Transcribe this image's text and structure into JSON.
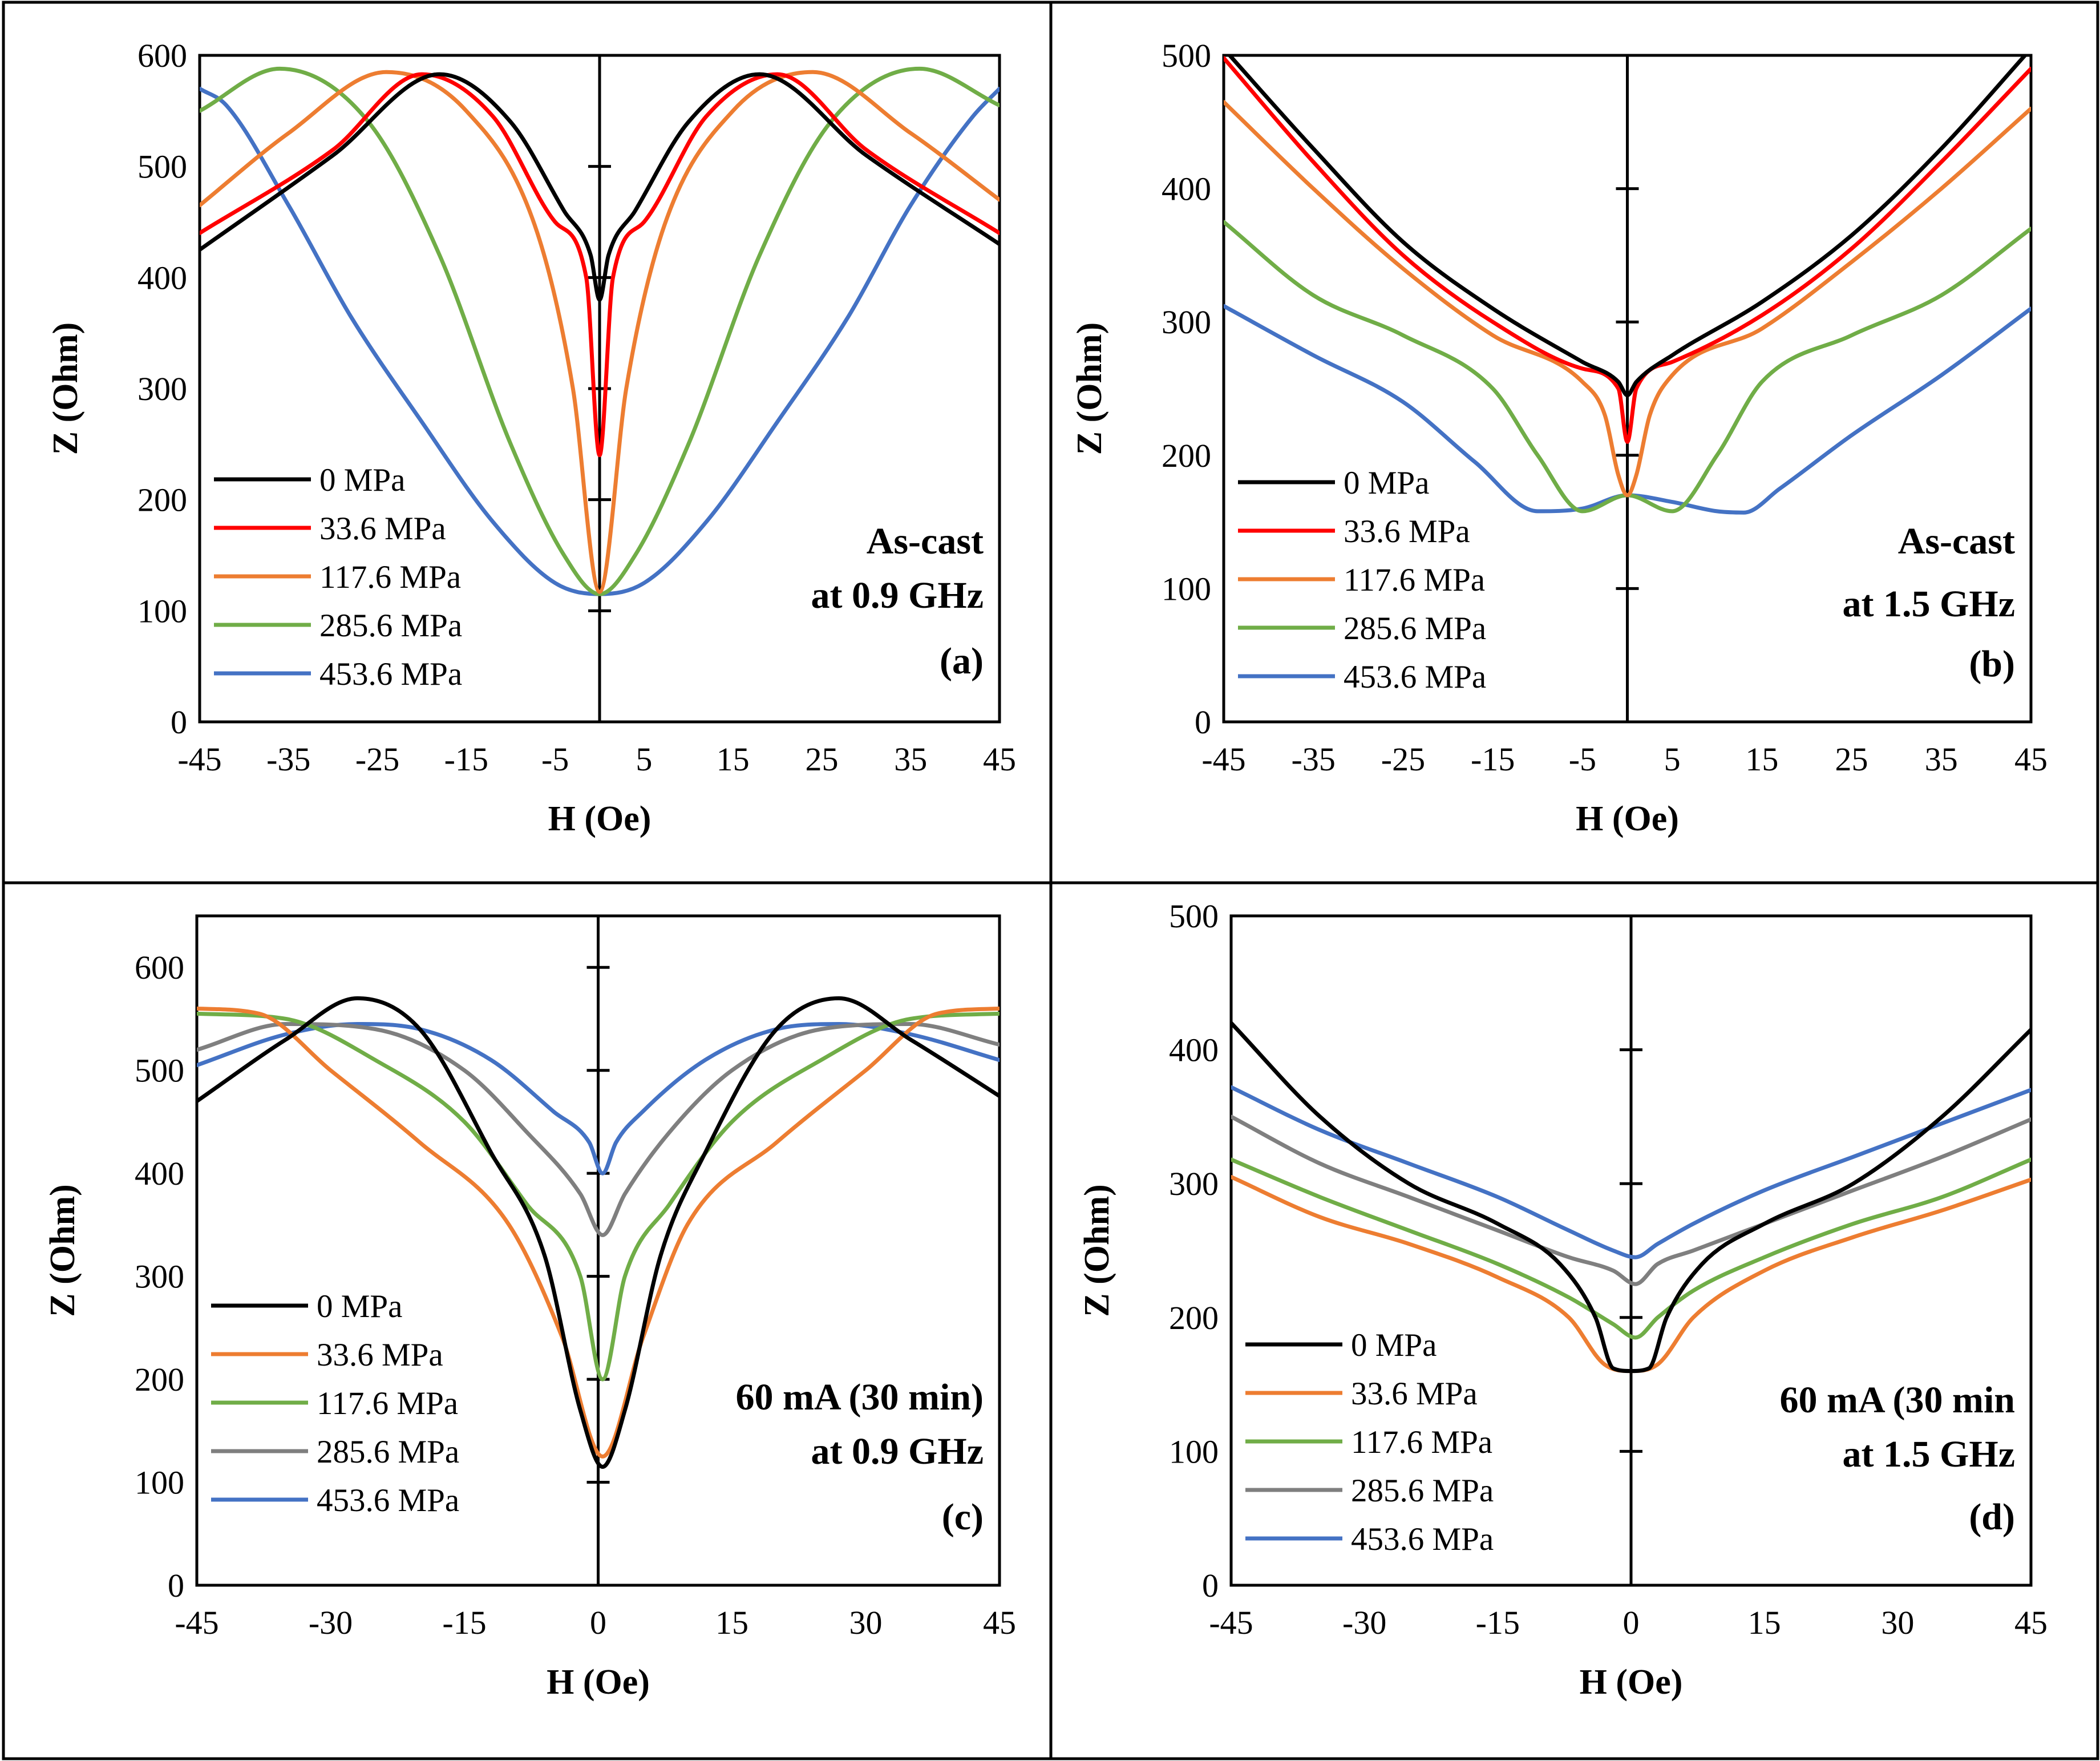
{
  "colors": {
    "black": "#000000",
    "red": "#ff0000",
    "orange": "#ed7d31",
    "green": "#70ad47",
    "gray": "#7f7f7f",
    "blue": "#4472c4"
  },
  "chart_data": [
    {
      "panel": "a",
      "type": "line",
      "xlabel": "H (Oe)",
      "ylabel": "Z (Ohm)",
      "xlim": [
        -45,
        45
      ],
      "ylim": [
        0,
        600
      ],
      "xticks": [
        "-45",
        "-35",
        "-25",
        "-15",
        "-5",
        "5",
        "15",
        "25",
        "35",
        "45"
      ],
      "yticks": [
        "0",
        "100",
        "200",
        "300",
        "400",
        "500",
        "600"
      ],
      "annotation": [
        "As-cast",
        "at 0.9 GHz",
        "(a)"
      ],
      "legend_position": "bottom-left",
      "series": [
        {
          "name": "0 MPa",
          "color": "black",
          "x": [
            -45,
            -30,
            -18,
            -10,
            -4,
            -1,
            0,
            1,
            4,
            10,
            18,
            30,
            45
          ],
          "y": [
            425,
            510,
            583,
            540,
            460,
            420,
            380,
            420,
            460,
            540,
            583,
            510,
            430
          ]
        },
        {
          "name": "33.6 MPa",
          "color": "red",
          "x": [
            -45,
            -30,
            -20,
            -12,
            -5,
            -1.5,
            0,
            1.5,
            5,
            12,
            20,
            30,
            45
          ],
          "y": [
            440,
            515,
            583,
            545,
            450,
            400,
            240,
            400,
            450,
            545,
            583,
            515,
            440
          ]
        },
        {
          "name": "117.6 MPa",
          "color": "orange",
          "x": [
            -45,
            -35,
            -24,
            -15,
            -7,
            -3,
            0,
            3,
            7,
            15,
            24,
            35,
            45
          ],
          "y": [
            465,
            530,
            585,
            550,
            440,
            300,
            117,
            300,
            440,
            550,
            585,
            530,
            470
          ]
        },
        {
          "name": "285.6 MPa",
          "color": "green",
          "x": [
            -45,
            -36,
            -26,
            -18,
            -10,
            -4,
            0,
            4,
            10,
            18,
            26,
            36,
            45
          ],
          "y": [
            550,
            588,
            540,
            420,
            250,
            150,
            115,
            150,
            250,
            420,
            540,
            588,
            555
          ]
        },
        {
          "name": "453.6 MPa",
          "color": "blue",
          "x": [
            -45,
            -42,
            -35,
            -28,
            -20,
            -12,
            -5,
            0,
            5,
            12,
            20,
            28,
            35,
            42,
            45
          ],
          "y": [
            570,
            555,
            465,
            365,
            270,
            180,
            125,
            115,
            125,
            180,
            270,
            365,
            465,
            545,
            570
          ]
        }
      ]
    },
    {
      "panel": "b",
      "type": "line",
      "xlabel": "H (Oe)",
      "ylabel": "Z (Ohm)",
      "xlim": [
        -45,
        45
      ],
      "ylim": [
        0,
        500
      ],
      "xticks": [
        "-45",
        "-35",
        "-25",
        "-15",
        "-5",
        "5",
        "15",
        "25",
        "35",
        "45"
      ],
      "yticks": [
        "0",
        "100",
        "200",
        "300",
        "400",
        "500"
      ],
      "annotation": [
        "As-cast",
        "at 1.5 GHz",
        "(b)"
      ],
      "legend_position": "bottom-left",
      "series": [
        {
          "name": "0 MPa",
          "color": "black",
          "x": [
            -45,
            -35,
            -25,
            -15,
            -5,
            -1,
            0,
            1,
            5,
            15,
            25,
            35,
            45
          ],
          "y": [
            505,
            430,
            360,
            310,
            270,
            255,
            245,
            255,
            275,
            315,
            365,
            430,
            505
          ]
        },
        {
          "name": "33.6 MPa",
          "color": "red",
          "x": [
            -45,
            -35,
            -25,
            -15,
            -5,
            -1,
            0,
            1,
            5,
            15,
            25,
            35,
            45
          ],
          "y": [
            498,
            420,
            350,
            300,
            265,
            250,
            210,
            250,
            270,
            305,
            355,
            420,
            490
          ]
        },
        {
          "name": "117.6 MPa",
          "color": "orange",
          "x": [
            -45,
            -35,
            -25,
            -15,
            -5,
            -2.5,
            -1,
            0,
            1,
            2.5,
            5,
            15,
            25,
            35,
            45
          ],
          "y": [
            465,
            400,
            340,
            290,
            255,
            230,
            185,
            170,
            185,
            230,
            260,
            295,
            345,
            400,
            460
          ]
        },
        {
          "name": "285.6 MPa",
          "color": "green",
          "x": [
            -45,
            -35,
            -25,
            -15,
            -10,
            -5,
            0,
            5,
            10,
            15,
            25,
            35,
            45
          ],
          "y": [
            375,
            320,
            290,
            250,
            200,
            158,
            170,
            158,
            200,
            255,
            290,
            320,
            370
          ]
        },
        {
          "name": "453.6 MPa",
          "color": "blue",
          "x": [
            -45,
            -35,
            -25,
            -17,
            -10,
            -5,
            0,
            5,
            10,
            13,
            17,
            25,
            35,
            45
          ],
          "y": [
            312,
            275,
            240,
            195,
            158,
            160,
            170,
            165,
            158,
            157,
            175,
            215,
            260,
            310
          ]
        }
      ]
    },
    {
      "panel": "c",
      "type": "line",
      "xlabel": "H (Oe)",
      "ylabel": "Z (Ohm)",
      "xlim": [
        -45,
        45
      ],
      "ylim": [
        0,
        650
      ],
      "xticks": [
        "-45",
        "-30",
        "-15",
        "0",
        "15",
        "30",
        "45"
      ],
      "yticks": [
        "0",
        "100",
        "200",
        "300",
        "400",
        "500",
        "600"
      ],
      "annotation": [
        "60 mA (30 min)",
        "at 0.9 GHz",
        "(c)"
      ],
      "legend_position": "bottom-left",
      "series": [
        {
          "name": "0 MPa",
          "color": "black",
          "x": [
            -45,
            -35,
            -27,
            -20,
            -12,
            -6,
            -2,
            0.5,
            3,
            7,
            12,
            20,
            27,
            35,
            45
          ],
          "y": [
            470,
            530,
            570,
            540,
            420,
            320,
            170,
            115,
            170,
            320,
            420,
            540,
            570,
            530,
            475
          ]
        },
        {
          "name": "33.6 MPa",
          "color": "orange",
          "x": [
            -45,
            -38,
            -30,
            -20,
            -10,
            -4,
            0.5,
            5,
            10,
            20,
            30,
            38,
            45
          ],
          "y": [
            560,
            555,
            500,
            430,
            350,
            240,
            125,
            240,
            350,
            430,
            500,
            555,
            560
          ]
        },
        {
          "name": "117.6 MPa",
          "color": "green",
          "x": [
            -45,
            -35,
            -25,
            -15,
            -8,
            -2,
            0.5,
            3,
            8,
            15,
            25,
            35,
            45
          ],
          "y": [
            555,
            550,
            510,
            450,
            370,
            300,
            200,
            300,
            370,
            450,
            510,
            550,
            555
          ]
        },
        {
          "name": "285.6 MPa",
          "color": "gray",
          "x": [
            -45,
            -35,
            -25,
            -15,
            -8,
            -2,
            0.5,
            3,
            8,
            15,
            25,
            35,
            45
          ],
          "y": [
            520,
            545,
            540,
            500,
            440,
            380,
            340,
            380,
            440,
            500,
            540,
            545,
            525
          ]
        },
        {
          "name": "453.6 MPa",
          "color": "blue",
          "x": [
            -45,
            -35,
            -27,
            -20,
            -12,
            -5,
            -1,
            0.5,
            2,
            5,
            12,
            20,
            27,
            35,
            45
          ],
          "y": [
            505,
            535,
            545,
            540,
            510,
            460,
            430,
            400,
            430,
            460,
            510,
            540,
            545,
            535,
            510
          ]
        }
      ]
    },
    {
      "panel": "d",
      "type": "line",
      "xlabel": "H (Oe)",
      "ylabel": "Z (Ohm)",
      "xlim": [
        -45,
        45
      ],
      "ylim": [
        0,
        500
      ],
      "xticks": [
        "-45",
        "-30",
        "-15",
        "0",
        "15",
        "30",
        "45"
      ],
      "yticks": [
        "0",
        "100",
        "200",
        "300",
        "400",
        "500"
      ],
      "annotation": [
        "60 mA (30 min",
        "at 1.5 GHz",
        "(d)"
      ],
      "legend_position": "bottom-left",
      "series": [
        {
          "name": "0 MPa",
          "color": "black",
          "x": [
            -45,
            -35,
            -25,
            -15,
            -8,
            -4,
            -2,
            0,
            2,
            4,
            8,
            15,
            25,
            35,
            45
          ],
          "y": [
            420,
            350,
            300,
            270,
            240,
            200,
            162,
            160,
            162,
            200,
            240,
            270,
            300,
            350,
            415
          ]
        },
        {
          "name": "33.6 MPa",
          "color": "orange",
          "x": [
            -45,
            -35,
            -25,
            -15,
            -7,
            -3,
            0,
            3,
            7,
            15,
            25,
            35,
            45
          ],
          "y": [
            305,
            275,
            255,
            230,
            200,
            165,
            160,
            165,
            200,
            235,
            260,
            280,
            303
          ]
        },
        {
          "name": "117.6 MPa",
          "color": "green",
          "x": [
            -45,
            -35,
            -25,
            -15,
            -7,
            -2,
            0.5,
            3,
            7,
            15,
            25,
            35,
            45
          ],
          "y": [
            318,
            290,
            265,
            240,
            215,
            195,
            185,
            200,
            220,
            245,
            270,
            290,
            318
          ]
        },
        {
          "name": "285.6 MPa",
          "color": "gray",
          "x": [
            -45,
            -35,
            -25,
            -15,
            -7,
            -2,
            0.5,
            3,
            7,
            15,
            25,
            35,
            45
          ],
          "y": [
            350,
            315,
            290,
            265,
            245,
            235,
            225,
            240,
            250,
            270,
            295,
            320,
            348
          ]
        },
        {
          "name": "453.6 MPa",
          "color": "blue",
          "x": [
            -45,
            -35,
            -25,
            -15,
            -7,
            -2,
            0.5,
            3,
            7,
            15,
            25,
            35,
            45
          ],
          "y": [
            372,
            340,
            315,
            290,
            265,
            250,
            245,
            255,
            270,
            295,
            320,
            345,
            370
          ]
        }
      ]
    }
  ]
}
